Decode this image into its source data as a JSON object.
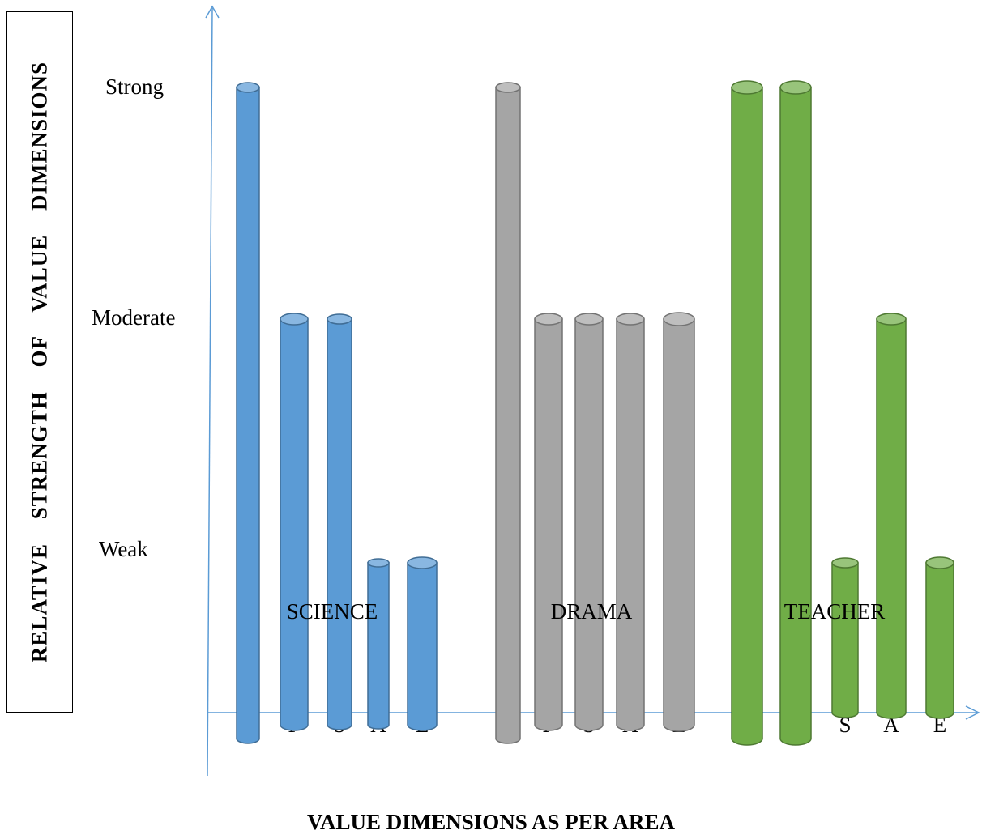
{
  "chart_data": {
    "type": "bar",
    "xlabel": "VALUE DIMENSIONS AS PER AREA",
    "ylabel": "RELATIVE STRENGTH OF VALUE DIMENSIONS",
    "y_levels": [
      "Weak",
      "Moderate",
      "Strong"
    ],
    "ylim": [
      0,
      3
    ],
    "groups": [
      {
        "name": "SCIENCE",
        "color": "#5B9BD5",
        "bars": [
          {
            "label": "",
            "value": 3
          },
          {
            "label": "P",
            "value": 2
          },
          {
            "label": "S",
            "value": 2
          },
          {
            "label": "A",
            "value": 1
          },
          {
            "label": "E",
            "value": 1
          }
        ]
      },
      {
        "name": "DRAMA",
        "color": "#A5A5A5",
        "bars": [
          {
            "label": "",
            "value": 3
          },
          {
            "label": "P",
            "value": 2
          },
          {
            "label": "S",
            "value": 2
          },
          {
            "label": "A",
            "value": 2
          },
          {
            "label": "E",
            "value": 2
          }
        ]
      },
      {
        "name": "TEACHER",
        "color": "#70AD47",
        "bars": [
          {
            "label": "",
            "value": 3
          },
          {
            "label": "",
            "value": 3
          },
          {
            "label": "S",
            "value": 1
          },
          {
            "label": "A",
            "value": 2
          },
          {
            "label": "E",
            "value": 1
          }
        ]
      }
    ]
  }
}
